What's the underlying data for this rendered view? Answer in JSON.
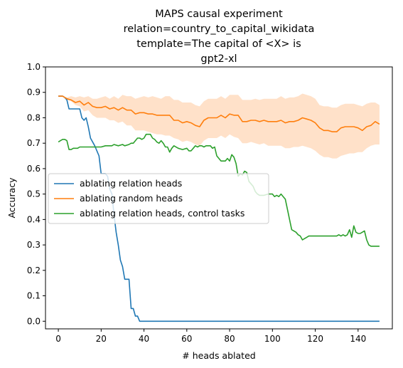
{
  "chart_data": {
    "type": "line",
    "title_lines": [
      "MAPS causal experiment",
      "relation=country_to_capital_wikidata",
      "template=The capital of <X> is",
      "gpt2-xl"
    ],
    "xlabel": "# heads ablated",
    "ylabel": "Accuracy",
    "xlim": [
      -6,
      156
    ],
    "ylim": [
      -0.03,
      1.0
    ],
    "xticks": [
      0,
      20,
      40,
      60,
      80,
      100,
      120,
      140
    ],
    "yticks": [
      0.0,
      0.1,
      0.2,
      0.3,
      0.4,
      0.5,
      0.6,
      0.7,
      0.8,
      0.9,
      1.0
    ],
    "ytick_labels": [
      "0.0",
      "0.1",
      "0.2",
      "0.3",
      "0.4",
      "0.5",
      "0.6",
      "0.7",
      "0.8",
      "0.9",
      "1.0"
    ],
    "legend_position": "center-left",
    "series": [
      {
        "name": "ablating relation heads",
        "color": "#1f77b4",
        "points": [
          [
            0,
            0.885
          ],
          [
            2,
            0.885
          ],
          [
            3,
            0.88
          ],
          [
            4,
            0.87
          ],
          [
            5,
            0.835
          ],
          [
            8,
            0.835
          ],
          [
            10,
            0.835
          ],
          [
            11,
            0.8
          ],
          [
            12,
            0.79
          ],
          [
            13,
            0.8
          ],
          [
            14,
            0.765
          ],
          [
            15,
            0.72
          ],
          [
            17,
            0.69
          ],
          [
            18,
            0.67
          ],
          [
            19,
            0.65
          ],
          [
            20,
            0.58
          ],
          [
            22,
            0.58
          ],
          [
            23,
            0.57
          ],
          [
            24,
            0.52
          ],
          [
            25,
            0.5
          ],
          [
            26,
            0.42
          ],
          [
            27,
            0.35
          ],
          [
            28,
            0.3
          ],
          [
            29,
            0.24
          ],
          [
            30,
            0.215
          ],
          [
            31,
            0.165
          ],
          [
            33,
            0.165
          ],
          [
            34,
            0.05
          ],
          [
            35,
            0.05
          ],
          [
            36,
            0.02
          ],
          [
            37,
            0.02
          ],
          [
            38,
            0.0
          ],
          [
            150,
            0.0
          ]
        ]
      },
      {
        "name": "ablating random heads",
        "color": "#ff7f0e",
        "band_color": "#ffdcc0",
        "points": [
          [
            0,
            0.885
          ],
          [
            2,
            0.885
          ],
          [
            4,
            0.875
          ],
          [
            6,
            0.87
          ],
          [
            8,
            0.86
          ],
          [
            10,
            0.865
          ],
          [
            12,
            0.85
          ],
          [
            14,
            0.86
          ],
          [
            16,
            0.845
          ],
          [
            18,
            0.84
          ],
          [
            20,
            0.84
          ],
          [
            22,
            0.845
          ],
          [
            24,
            0.835
          ],
          [
            26,
            0.84
          ],
          [
            28,
            0.83
          ],
          [
            30,
            0.84
          ],
          [
            32,
            0.83
          ],
          [
            34,
            0.83
          ],
          [
            36,
            0.815
          ],
          [
            38,
            0.82
          ],
          [
            40,
            0.82
          ],
          [
            42,
            0.815
          ],
          [
            44,
            0.815
          ],
          [
            46,
            0.81
          ],
          [
            48,
            0.81
          ],
          [
            50,
            0.81
          ],
          [
            52,
            0.81
          ],
          [
            54,
            0.79
          ],
          [
            56,
            0.79
          ],
          [
            58,
            0.78
          ],
          [
            60,
            0.785
          ],
          [
            62,
            0.78
          ],
          [
            64,
            0.77
          ],
          [
            66,
            0.765
          ],
          [
            68,
            0.79
          ],
          [
            70,
            0.8
          ],
          [
            72,
            0.8
          ],
          [
            74,
            0.8
          ],
          [
            76,
            0.81
          ],
          [
            78,
            0.8
          ],
          [
            80,
            0.815
          ],
          [
            82,
            0.81
          ],
          [
            84,
            0.81
          ],
          [
            86,
            0.785
          ],
          [
            88,
            0.785
          ],
          [
            90,
            0.79
          ],
          [
            92,
            0.79
          ],
          [
            94,
            0.785
          ],
          [
            96,
            0.79
          ],
          [
            98,
            0.785
          ],
          [
            100,
            0.785
          ],
          [
            102,
            0.785
          ],
          [
            104,
            0.79
          ],
          [
            106,
            0.78
          ],
          [
            108,
            0.785
          ],
          [
            110,
            0.785
          ],
          [
            112,
            0.79
          ],
          [
            114,
            0.8
          ],
          [
            116,
            0.795
          ],
          [
            118,
            0.79
          ],
          [
            120,
            0.78
          ],
          [
            122,
            0.76
          ],
          [
            124,
            0.75
          ],
          [
            126,
            0.75
          ],
          [
            128,
            0.745
          ],
          [
            130,
            0.745
          ],
          [
            132,
            0.76
          ],
          [
            134,
            0.765
          ],
          [
            136,
            0.765
          ],
          [
            138,
            0.765
          ],
          [
            140,
            0.76
          ],
          [
            142,
            0.75
          ],
          [
            144,
            0.765
          ],
          [
            146,
            0.77
          ],
          [
            148,
            0.785
          ],
          [
            150,
            0.775
          ]
        ],
        "lower": [
          0.885,
          0.885,
          0.87,
          0.865,
          0.85,
          0.845,
          0.825,
          0.83,
          0.81,
          0.8,
          0.8,
          0.8,
          0.79,
          0.79,
          0.78,
          0.785,
          0.77,
          0.77,
          0.75,
          0.75,
          0.75,
          0.745,
          0.74,
          0.735,
          0.735,
          0.73,
          0.73,
          0.72,
          0.715,
          0.705,
          0.71,
          0.705,
          0.695,
          0.69,
          0.71,
          0.72,
          0.72,
          0.72,
          0.73,
          0.72,
          0.735,
          0.725,
          0.72,
          0.7,
          0.7,
          0.705,
          0.7,
          0.695,
          0.7,
          0.69,
          0.69,
          0.69,
          0.69,
          0.68,
          0.68,
          0.685,
          0.685,
          0.69,
          0.685,
          0.68,
          0.67,
          0.655,
          0.645,
          0.645,
          0.64,
          0.64,
          0.65,
          0.655,
          0.66,
          0.66,
          0.665,
          0.665,
          0.68,
          0.69,
          0.695,
          0.695
        ],
        "upper": [
          0.885,
          0.885,
          0.88,
          0.885,
          0.88,
          0.885,
          0.88,
          0.885,
          0.875,
          0.875,
          0.88,
          0.885,
          0.875,
          0.885,
          0.875,
          0.89,
          0.885,
          0.885,
          0.875,
          0.88,
          0.885,
          0.88,
          0.885,
          0.88,
          0.875,
          0.885,
          0.885,
          0.87,
          0.87,
          0.86,
          0.86,
          0.86,
          0.85,
          0.845,
          0.865,
          0.875,
          0.875,
          0.875,
          0.885,
          0.875,
          0.89,
          0.89,
          0.89,
          0.87,
          0.87,
          0.87,
          0.875,
          0.87,
          0.875,
          0.875,
          0.875,
          0.875,
          0.885,
          0.875,
          0.88,
          0.88,
          0.885,
          0.895,
          0.89,
          0.885,
          0.875,
          0.85,
          0.845,
          0.845,
          0.84,
          0.84,
          0.85,
          0.855,
          0.855,
          0.855,
          0.85,
          0.845,
          0.855,
          0.86,
          0.86,
          0.85
        ]
      },
      {
        "name": "ablating relation heads, control tasks",
        "color": "#2ca02c",
        "points": [
          [
            0,
            0.705
          ],
          [
            1,
            0.71
          ],
          [
            2,
            0.715
          ],
          [
            3,
            0.715
          ],
          [
            4,
            0.71
          ],
          [
            5,
            0.675
          ],
          [
            6,
            0.675
          ],
          [
            7,
            0.68
          ],
          [
            9,
            0.68
          ],
          [
            10,
            0.685
          ],
          [
            16,
            0.685
          ],
          [
            20,
            0.685
          ],
          [
            22,
            0.69
          ],
          [
            25,
            0.69
          ],
          [
            26,
            0.695
          ],
          [
            28,
            0.69
          ],
          [
            30,
            0.695
          ],
          [
            31,
            0.69
          ],
          [
            33,
            0.695
          ],
          [
            34,
            0.7
          ],
          [
            35,
            0.7
          ],
          [
            36,
            0.71
          ],
          [
            37,
            0.72
          ],
          [
            38,
            0.72
          ],
          [
            39,
            0.715
          ],
          [
            40,
            0.72
          ],
          [
            41,
            0.735
          ],
          [
            43,
            0.735
          ],
          [
            44,
            0.72
          ],
          [
            45,
            0.715
          ],
          [
            46,
            0.705
          ],
          [
            47,
            0.7
          ],
          [
            48,
            0.71
          ],
          [
            49,
            0.7
          ],
          [
            50,
            0.685
          ],
          [
            51,
            0.685
          ],
          [
            52,
            0.665
          ],
          [
            53,
            0.68
          ],
          [
            54,
            0.69
          ],
          [
            56,
            0.68
          ],
          [
            58,
            0.675
          ],
          [
            60,
            0.68
          ],
          [
            61,
            0.67
          ],
          [
            62,
            0.67
          ],
          [
            63,
            0.68
          ],
          [
            64,
            0.69
          ],
          [
            65,
            0.685
          ],
          [
            66,
            0.69
          ],
          [
            67,
            0.69
          ],
          [
            68,
            0.685
          ],
          [
            69,
            0.69
          ],
          [
            70,
            0.69
          ],
          [
            71,
            0.69
          ],
          [
            72,
            0.68
          ],
          [
            73,
            0.685
          ],
          [
            74,
            0.65
          ],
          [
            75,
            0.64
          ],
          [
            76,
            0.63
          ],
          [
            77,
            0.63
          ],
          [
            78,
            0.63
          ],
          [
            79,
            0.64
          ],
          [
            80,
            0.63
          ],
          [
            81,
            0.655
          ],
          [
            82,
            0.645
          ],
          [
            83,
            0.62
          ],
          [
            84,
            0.57
          ],
          [
            85,
            0.58
          ],
          [
            86,
            0.575
          ],
          [
            87,
            0.59
          ],
          [
            88,
            0.585
          ],
          [
            89,
            0.55
          ],
          [
            90,
            0.54
          ],
          [
            91,
            0.53
          ],
          [
            92,
            0.51
          ],
          [
            93,
            0.5
          ],
          [
            94,
            0.495
          ],
          [
            96,
            0.495
          ],
          [
            98,
            0.5
          ],
          [
            100,
            0.5
          ],
          [
            101,
            0.49
          ],
          [
            102,
            0.495
          ],
          [
            103,
            0.49
          ],
          [
            104,
            0.5
          ],
          [
            105,
            0.49
          ],
          [
            106,
            0.48
          ],
          [
            107,
            0.44
          ],
          [
            108,
            0.4
          ],
          [
            109,
            0.36
          ],
          [
            110,
            0.355
          ],
          [
            111,
            0.35
          ],
          [
            112,
            0.34
          ],
          [
            113,
            0.335
          ],
          [
            114,
            0.32
          ],
          [
            115,
            0.325
          ],
          [
            116,
            0.33
          ],
          [
            117,
            0.335
          ],
          [
            120,
            0.335
          ],
          [
            125,
            0.335
          ],
          [
            130,
            0.335
          ],
          [
            131,
            0.34
          ],
          [
            132,
            0.335
          ],
          [
            133,
            0.34
          ],
          [
            134,
            0.335
          ],
          [
            135,
            0.34
          ],
          [
            136,
            0.36
          ],
          [
            137,
            0.33
          ],
          [
            138,
            0.375
          ],
          [
            139,
            0.35
          ],
          [
            140,
            0.345
          ],
          [
            141,
            0.345
          ],
          [
            142,
            0.35
          ],
          [
            143,
            0.355
          ],
          [
            144,
            0.32
          ],
          [
            145,
            0.3
          ],
          [
            146,
            0.295
          ],
          [
            150,
            0.295
          ]
        ]
      }
    ]
  }
}
